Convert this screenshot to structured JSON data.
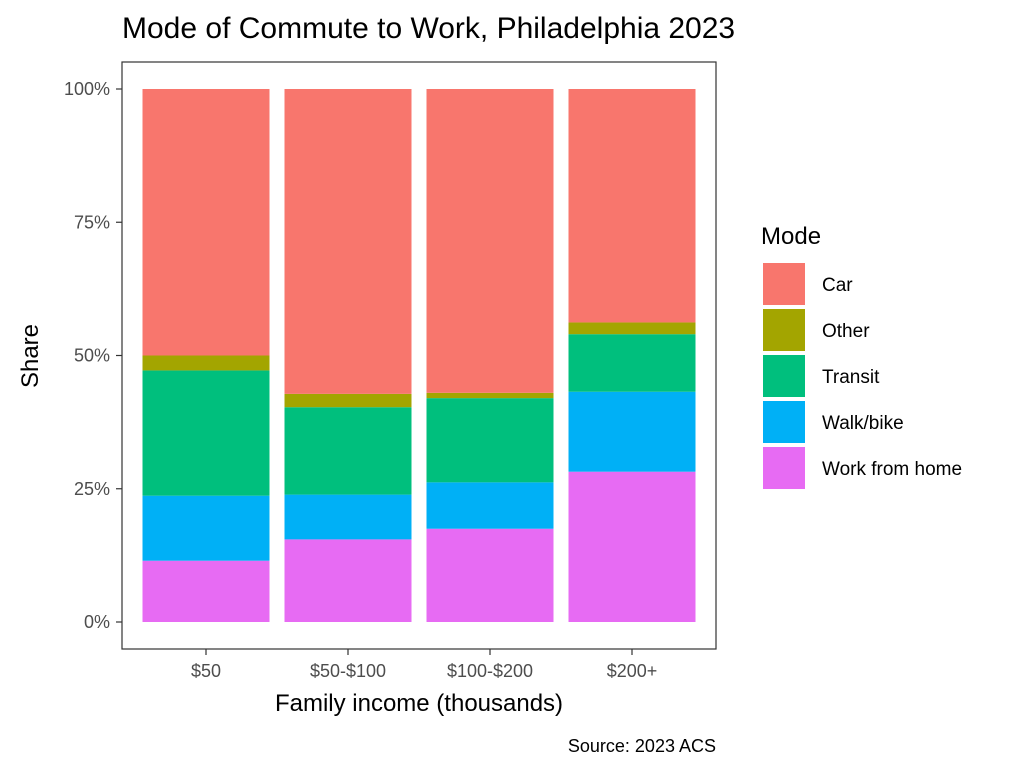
{
  "chart_data": {
    "type": "bar",
    "stacked": true,
    "percent": true,
    "title": "Mode of Commute to Work, Philadelphia 2023",
    "xlabel": "Family income (thousands)",
    "ylabel": "Share",
    "caption": "Source: 2023 ACS",
    "categories": [
      "$50",
      "$50-$100",
      "$100-$200",
      "$200+"
    ],
    "y_ticks": [
      {
        "value": 0,
        "label": "0%"
      },
      {
        "value": 0.25,
        "label": "25%"
      },
      {
        "value": 0.5,
        "label": "50%"
      },
      {
        "value": 0.75,
        "label": "75%"
      },
      {
        "value": 1.0,
        "label": "100%"
      }
    ],
    "ylim": [
      0,
      1
    ],
    "grid": false,
    "legend": {
      "title": "Mode",
      "position": "right"
    },
    "series": [
      {
        "name": "Car",
        "color": "#F8766D",
        "values": [
          0.5,
          0.572,
          0.57,
          0.438
        ]
      },
      {
        "name": "Other",
        "color": "#A3A500",
        "values": [
          0.028,
          0.025,
          0.01,
          0.022
        ]
      },
      {
        "name": "Transit",
        "color": "#00BF7D",
        "values": [
          0.235,
          0.164,
          0.158,
          0.108
        ]
      },
      {
        "name": "Walk/bike",
        "color": "#00B0F6",
        "values": [
          0.122,
          0.084,
          0.087,
          0.15
        ]
      },
      {
        "name": "Work from home",
        "color": "#E76BF3",
        "values": [
          0.115,
          0.155,
          0.175,
          0.282
        ]
      }
    ]
  }
}
